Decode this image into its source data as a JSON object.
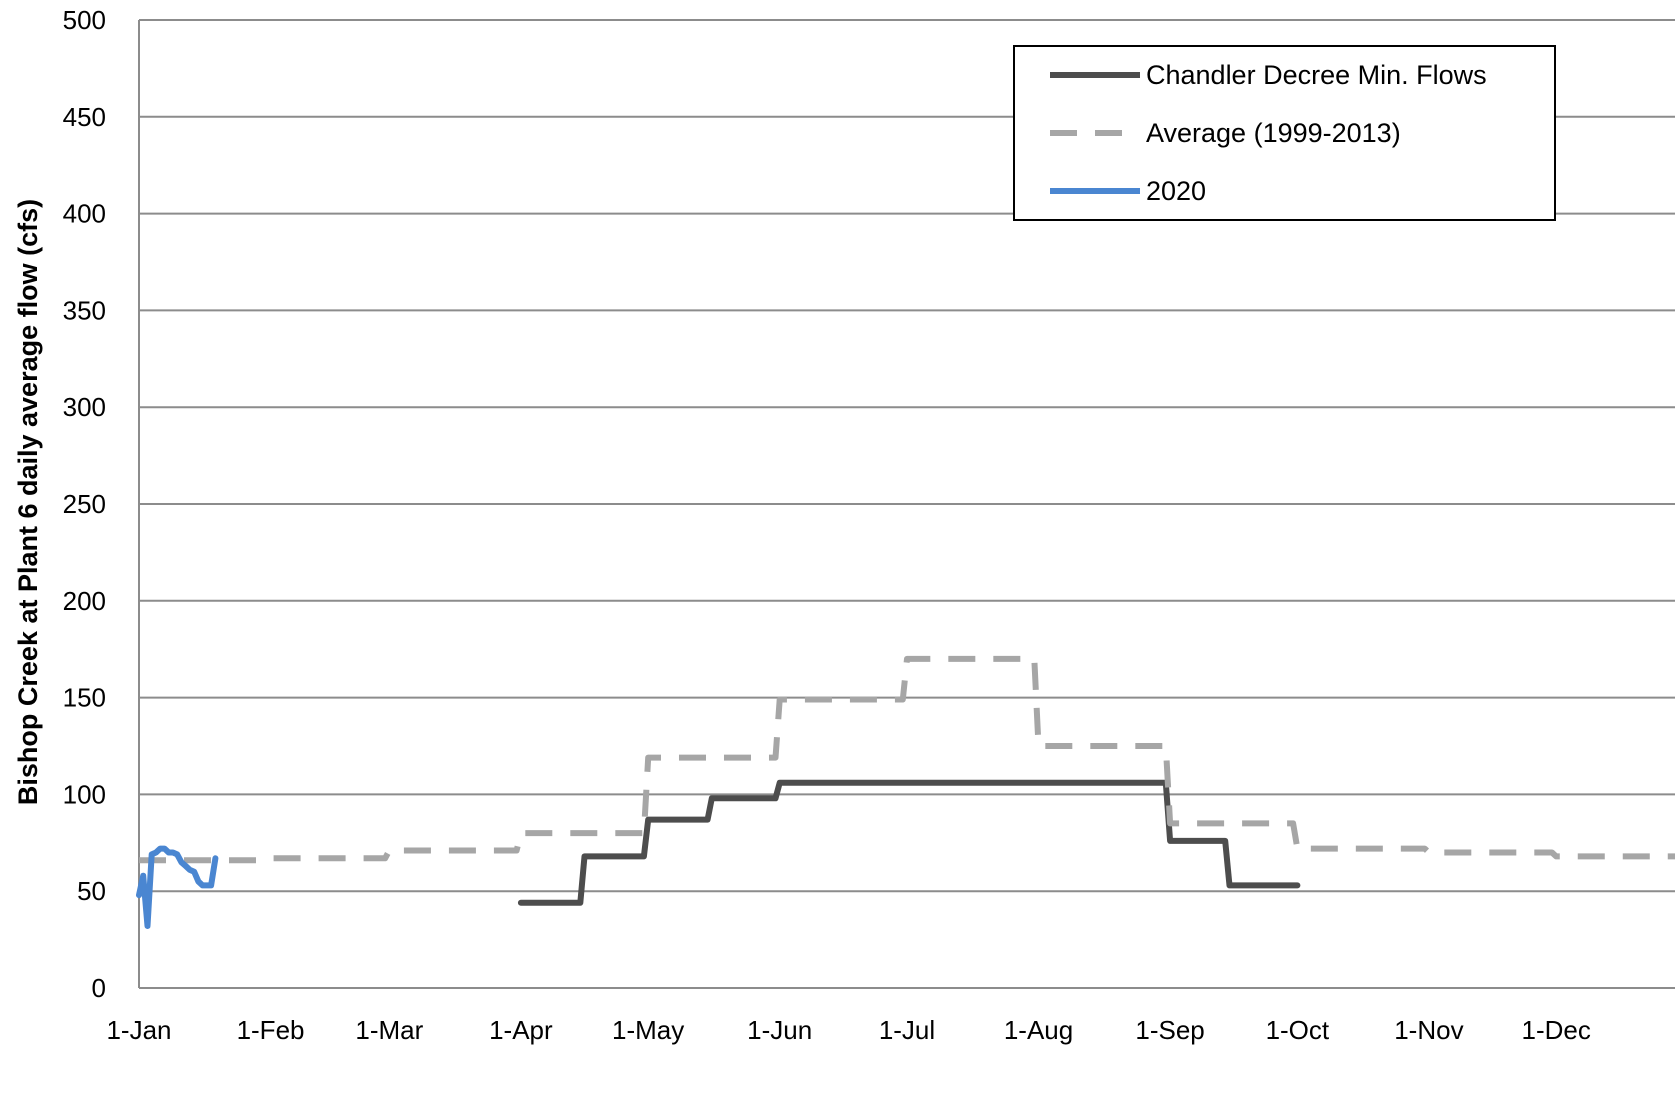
{
  "chart_data": {
    "type": "line",
    "title": "",
    "xlabel": "",
    "ylabel": "Bishop Creek at Plant 6 daily average flow (cfs)",
    "ylim": [
      0,
      500
    ],
    "yticks": [
      0,
      50,
      100,
      150,
      200,
      250,
      300,
      350,
      400,
      450,
      500
    ],
    "xlim": [
      "1-Jan",
      "31-Dec"
    ],
    "xticks": [
      {
        "label": "1-Jan",
        "day": 1
      },
      {
        "label": "1-Feb",
        "day": 32
      },
      {
        "label": "1-Mar",
        "day": 60
      },
      {
        "label": "1-Apr",
        "day": 91
      },
      {
        "label": "1-May",
        "day": 121
      },
      {
        "label": "1-Jun",
        "day": 152
      },
      {
        "label": "1-Jul",
        "day": 182
      },
      {
        "label": "1-Aug",
        "day": 213
      },
      {
        "label": "1-Sep",
        "day": 244
      },
      {
        "label": "1-Oct",
        "day": 274
      },
      {
        "label": "1-Nov",
        "day": 305
      },
      {
        "label": "1-Dec",
        "day": 335
      }
    ],
    "grid": true,
    "legend_position": "top-right",
    "series": [
      {
        "name": "Chandler Decree Min. Flows",
        "color": "#4d4d4d",
        "style": "solid",
        "points": [
          [
            91,
            44
          ],
          [
            105,
            44
          ],
          [
            106,
            68
          ],
          [
            120,
            68
          ],
          [
            121,
            87
          ],
          [
            135,
            87
          ],
          [
            136,
            98
          ],
          [
            151,
            98
          ],
          [
            152,
            106
          ],
          [
            243,
            106
          ],
          [
            244,
            76
          ],
          [
            257,
            76
          ],
          [
            258,
            53
          ],
          [
            274,
            53
          ]
        ]
      },
      {
        "name": "Average (1999-2013)",
        "color": "#a6a6a6",
        "style": "dashed",
        "points": [
          [
            1,
            66
          ],
          [
            31,
            66
          ],
          [
            32,
            67
          ],
          [
            59,
            67
          ],
          [
            60,
            71
          ],
          [
            90,
            71
          ],
          [
            91,
            80
          ],
          [
            120,
            80
          ],
          [
            121,
            119
          ],
          [
            151,
            119
          ],
          [
            152,
            149
          ],
          [
            181,
            149
          ],
          [
            182,
            170
          ],
          [
            212,
            170
          ],
          [
            213,
            125
          ],
          [
            243,
            125
          ],
          [
            244,
            85
          ],
          [
            273,
            85
          ],
          [
            274,
            72
          ],
          [
            304,
            72
          ],
          [
            305,
            70
          ],
          [
            334,
            70
          ],
          [
            335,
            68
          ],
          [
            365,
            68
          ]
        ]
      },
      {
        "name": "2020",
        "color": "#4a86d1",
        "style": "solid",
        "points": [
          [
            1,
            48
          ],
          [
            2,
            58
          ],
          [
            3,
            32
          ],
          [
            4,
            69
          ],
          [
            5,
            70
          ],
          [
            6,
            72
          ],
          [
            7,
            72
          ],
          [
            8,
            70
          ],
          [
            9,
            70
          ],
          [
            10,
            69
          ],
          [
            11,
            65
          ],
          [
            12,
            63
          ],
          [
            13,
            61
          ],
          [
            14,
            60
          ],
          [
            15,
            55
          ],
          [
            16,
            53
          ],
          [
            17,
            53
          ],
          [
            18,
            53
          ],
          [
            19,
            67
          ]
        ]
      }
    ]
  }
}
